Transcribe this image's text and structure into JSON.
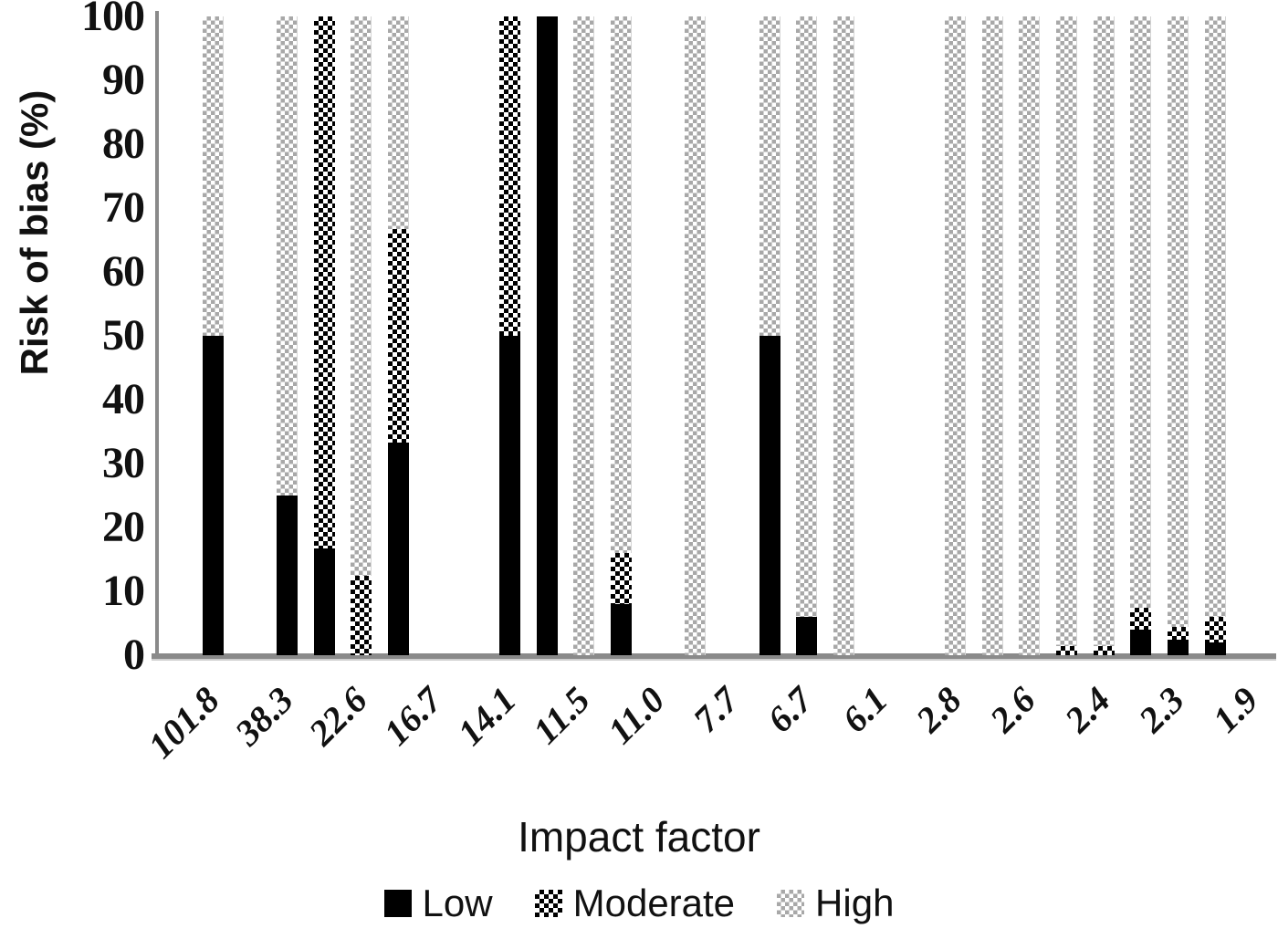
{
  "chart_data": {
    "type": "bar",
    "stacked": true,
    "percent_scale": true,
    "ylabel": "Risk of bias (%)",
    "xlabel": "Impact factor",
    "ylim": [
      0,
      100
    ],
    "yticks": [
      0,
      10,
      20,
      30,
      40,
      50,
      60,
      70,
      80,
      90,
      100
    ],
    "grid": false,
    "legend_position": "bottom",
    "legend": [
      {
        "label": "Low",
        "pattern": "solid-black"
      },
      {
        "label": "Moderate",
        "pattern": "black-checker"
      },
      {
        "label": "High",
        "pattern": "gray-checker"
      }
    ],
    "series_names": [
      "Low",
      "Moderate",
      "High"
    ],
    "categories": [
      {
        "label": "101.8",
        "bars": [
          {
            "slot": 1,
            "low": 50,
            "moderate": 0,
            "high": 50
          }
        ]
      },
      {
        "label": "38.3",
        "bars": [
          {
            "slot": 1,
            "low": 25,
            "moderate": 0,
            "high": 75
          }
        ]
      },
      {
        "label": "22.6",
        "bars": [
          {
            "slot": 0,
            "low": 16.7,
            "moderate": 83.3,
            "high": 0
          },
          {
            "slot": 1,
            "low": 0,
            "moderate": 12.5,
            "high": 87.5
          }
        ]
      },
      {
        "label": "16.7",
        "bars": [
          {
            "slot": 0,
            "low": 33.3,
            "moderate": 33.4,
            "high": 33.3
          }
        ]
      },
      {
        "label": "14.1",
        "bars": [
          {
            "slot": 1,
            "low": 50,
            "moderate": 50,
            "high": 0
          }
        ]
      },
      {
        "label": "11.5",
        "bars": [
          {
            "slot": 0,
            "low": 100,
            "moderate": 0,
            "high": 0
          },
          {
            "slot": 1,
            "low": 0,
            "moderate": 0,
            "high": 100
          }
        ]
      },
      {
        "label": "11.0",
        "bars": [
          {
            "slot": 0,
            "low": 8,
            "moderate": 8,
            "high": 84
          }
        ]
      },
      {
        "label": "7.7",
        "bars": [
          {
            "slot": 0,
            "low": 0,
            "moderate": 0,
            "high": 100
          }
        ]
      },
      {
        "label": "6.7",
        "bars": [
          {
            "slot": 0,
            "low": 50,
            "moderate": 0,
            "high": 50
          },
          {
            "slot": 1,
            "low": 6,
            "moderate": 0,
            "high": 94
          }
        ]
      },
      {
        "label": "6.1",
        "bars": [
          {
            "slot": 0,
            "low": 0,
            "moderate": 0,
            "high": 100
          }
        ]
      },
      {
        "label": "2.8",
        "bars": [
          {
            "slot": 1,
            "low": 0,
            "moderate": 0,
            "high": 100
          }
        ]
      },
      {
        "label": "2.6",
        "bars": [
          {
            "slot": 0,
            "low": 0,
            "moderate": 0,
            "high": 100
          },
          {
            "slot": 1,
            "low": 0,
            "moderate": 0,
            "high": 100
          }
        ]
      },
      {
        "label": "2.4",
        "bars": [
          {
            "slot": 0,
            "low": 0,
            "moderate": 1.5,
            "high": 98.5
          },
          {
            "slot": 1,
            "low": 0,
            "moderate": 1.5,
            "high": 98.5
          }
        ]
      },
      {
        "label": "2.3",
        "bars": [
          {
            "slot": 0,
            "low": 4,
            "moderate": 3.5,
            "high": 92.5
          },
          {
            "slot": 1,
            "low": 2.5,
            "moderate": 2,
            "high": 95.5
          }
        ]
      },
      {
        "label": "1.9",
        "bars": [
          {
            "slot": 0,
            "low": 2,
            "moderate": 4,
            "high": 94
          }
        ]
      }
    ],
    "colors": {
      "low": "#000000",
      "moderate_pattern_fg": "#000000",
      "high_pattern_fg": "#a8a8a8",
      "pattern_bg": "#ffffff",
      "axis_line": "#8a8a8a",
      "text": "#111111",
      "background": "#ffffff"
    }
  }
}
